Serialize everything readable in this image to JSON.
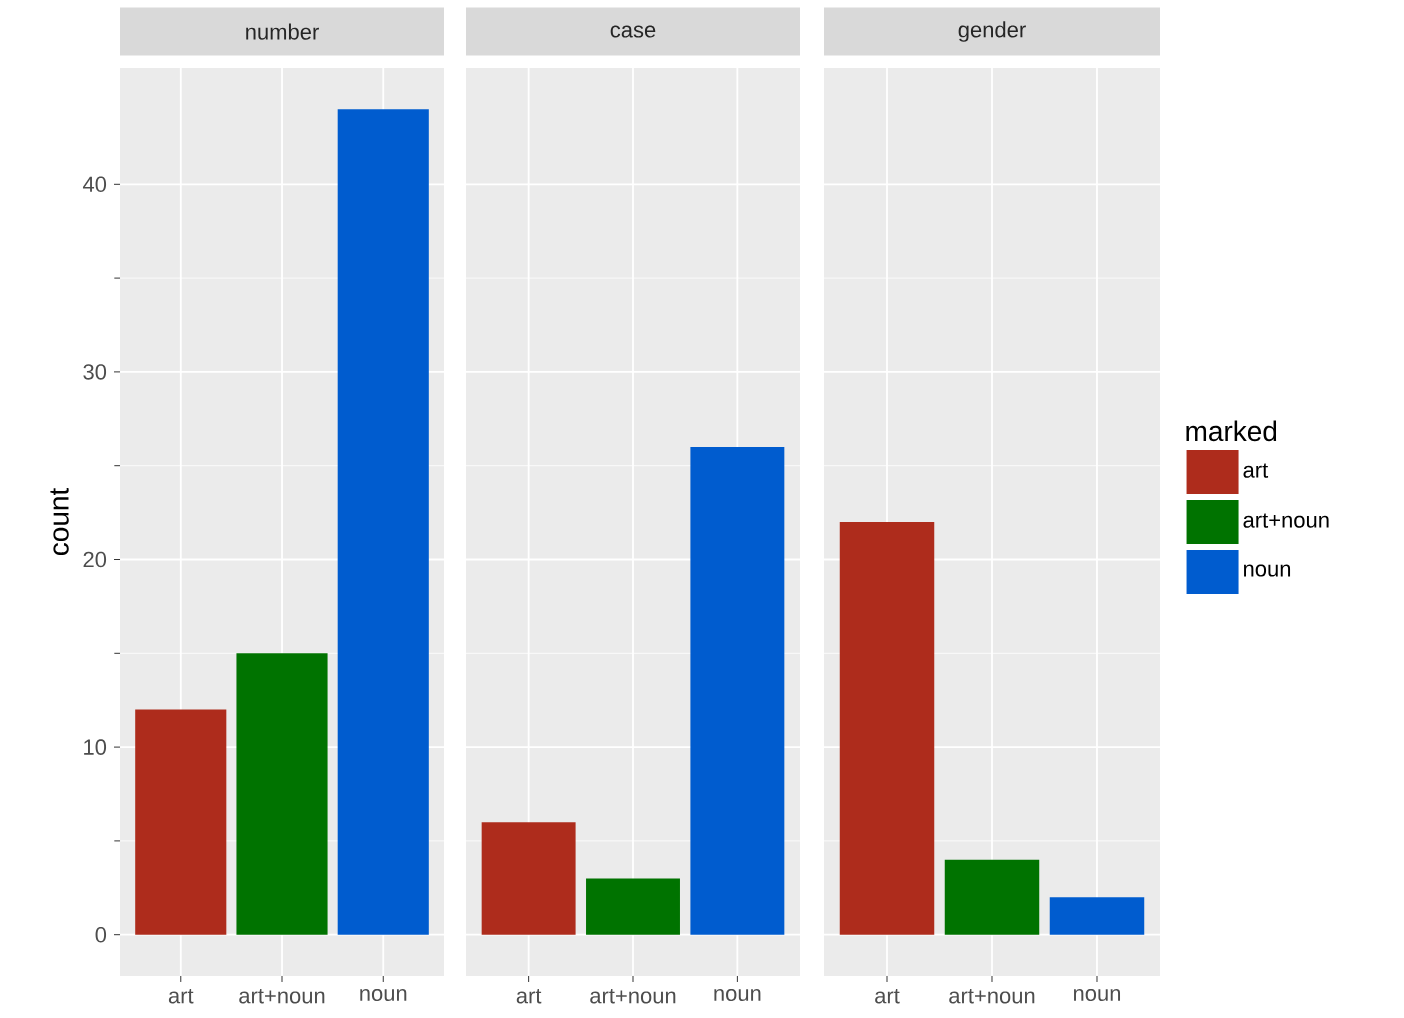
{
  "chart_data": [
    {
      "type": "bar",
      "title": "number",
      "ylabel": "count",
      "categories": [
        "art",
        "art+noun",
        "noun"
      ],
      "series": [
        {
          "color": "#ae2c1c",
          "values": [
            12,
            null,
            null
          ]
        },
        {
          "color": "#007300",
          "values": [
            null,
            15,
            null
          ]
        },
        {
          "color": "#005ccf",
          "values": [
            null,
            null,
            44
          ]
        }
      ],
      "ylim": [
        -2.2,
        46.2
      ],
      "yticks": [
        0,
        10,
        20,
        30,
        40
      ],
      "grid": true
    },
    {
      "type": "bar",
      "title": "case",
      "categories": [
        "art",
        "art+noun",
        "noun"
      ],
      "series": [
        {
          "color": "#ae2c1c",
          "values": [
            6,
            null,
            null
          ]
        },
        {
          "color": "#007300",
          "values": [
            null,
            3,
            null
          ]
        },
        {
          "color": "#005ccf",
          "values": [
            null,
            null,
            26
          ]
        }
      ],
      "ylim": [
        -2.2,
        46.2
      ],
      "yticks": [
        0,
        10,
        20,
        30,
        40
      ],
      "grid": true,
      "tick_labels": "x"
    },
    {
      "type": "bar",
      "title": "gender",
      "categories": [
        "art",
        "art+noun",
        "noun"
      ],
      "series": [
        {
          "name": "art",
          "color": "#ae2c1c",
          "values": [
            22,
            null,
            null
          ]
        },
        {
          "name": "art+noun",
          "color": "#007300",
          "values": [
            null,
            4,
            null
          ]
        },
        {
          "name": "noun",
          "color": "#005ccf",
          "values": [
            null,
            null,
            2
          ]
        }
      ],
      "ylim": [
        -2.2,
        46.2
      ],
      "yticks": [
        0,
        10,
        20,
        30,
        40
      ],
      "grid": true,
      "tick_labels": "x",
      "legend": "right",
      "legend_title": "marked"
    }
  ]
}
